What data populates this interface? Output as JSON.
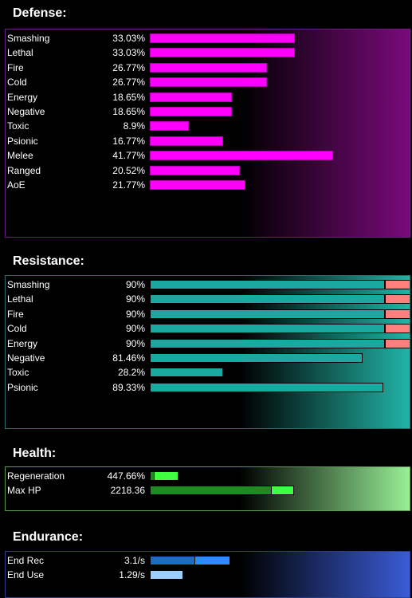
{
  "defense": {
    "title": "Defense:",
    "max": 60,
    "color": "#ff00ff",
    "rows": [
      {
        "label": "Smashing",
        "value": "33.03%",
        "pct": 33.03
      },
      {
        "label": "Lethal",
        "value": "33.03%",
        "pct": 33.03
      },
      {
        "label": "Fire",
        "value": "26.77%",
        "pct": 26.77
      },
      {
        "label": "Cold",
        "value": "26.77%",
        "pct": 26.77
      },
      {
        "label": "Energy",
        "value": "18.65%",
        "pct": 18.65
      },
      {
        "label": "Negative",
        "value": "18.65%",
        "pct": 18.65
      },
      {
        "label": "Toxic",
        "value": "8.9%",
        "pct": 8.9
      },
      {
        "label": "Psionic",
        "value": "16.77%",
        "pct": 16.77
      },
      {
        "label": "Melee",
        "value": "41.77%",
        "pct": 41.77
      },
      {
        "label": "Ranged",
        "value": "20.52%",
        "pct": 20.52
      },
      {
        "label": "AoE",
        "value": "21.77%",
        "pct": 21.77
      }
    ]
  },
  "resistance": {
    "title": "Resistance:",
    "cap": 90,
    "color": "#1aa8a0",
    "overcap_color": "#ff7f7f",
    "rows": [
      {
        "label": "Smashing",
        "value": "90%",
        "pct": 90,
        "capped": true
      },
      {
        "label": "Lethal",
        "value": "90%",
        "pct": 90,
        "capped": true
      },
      {
        "label": "Fire",
        "value": "90%",
        "pct": 90,
        "capped": true
      },
      {
        "label": "Cold",
        "value": "90%",
        "pct": 90,
        "capped": true
      },
      {
        "label": "Energy",
        "value": "90%",
        "pct": 90,
        "capped": true
      },
      {
        "label": "Negative",
        "value": "81.46%",
        "pct": 81.46,
        "capped": false
      },
      {
        "label": "Toxic",
        "value": "28.2%",
        "pct": 28.2,
        "capped": false
      },
      {
        "label": "Psionic",
        "value": "89.33%",
        "pct": 89.33,
        "capped": false
      }
    ]
  },
  "health": {
    "title": "Health:",
    "rows": [
      {
        "label": "Regeneration",
        "value": "447.66%"
      },
      {
        "label": "Max HP",
        "value": "2218.36"
      }
    ]
  },
  "endurance": {
    "title": "Endurance:",
    "rows": [
      {
        "label": "End Rec",
        "value": "3.1/s"
      },
      {
        "label": "End Use",
        "value": "1.29/s"
      }
    ]
  }
}
